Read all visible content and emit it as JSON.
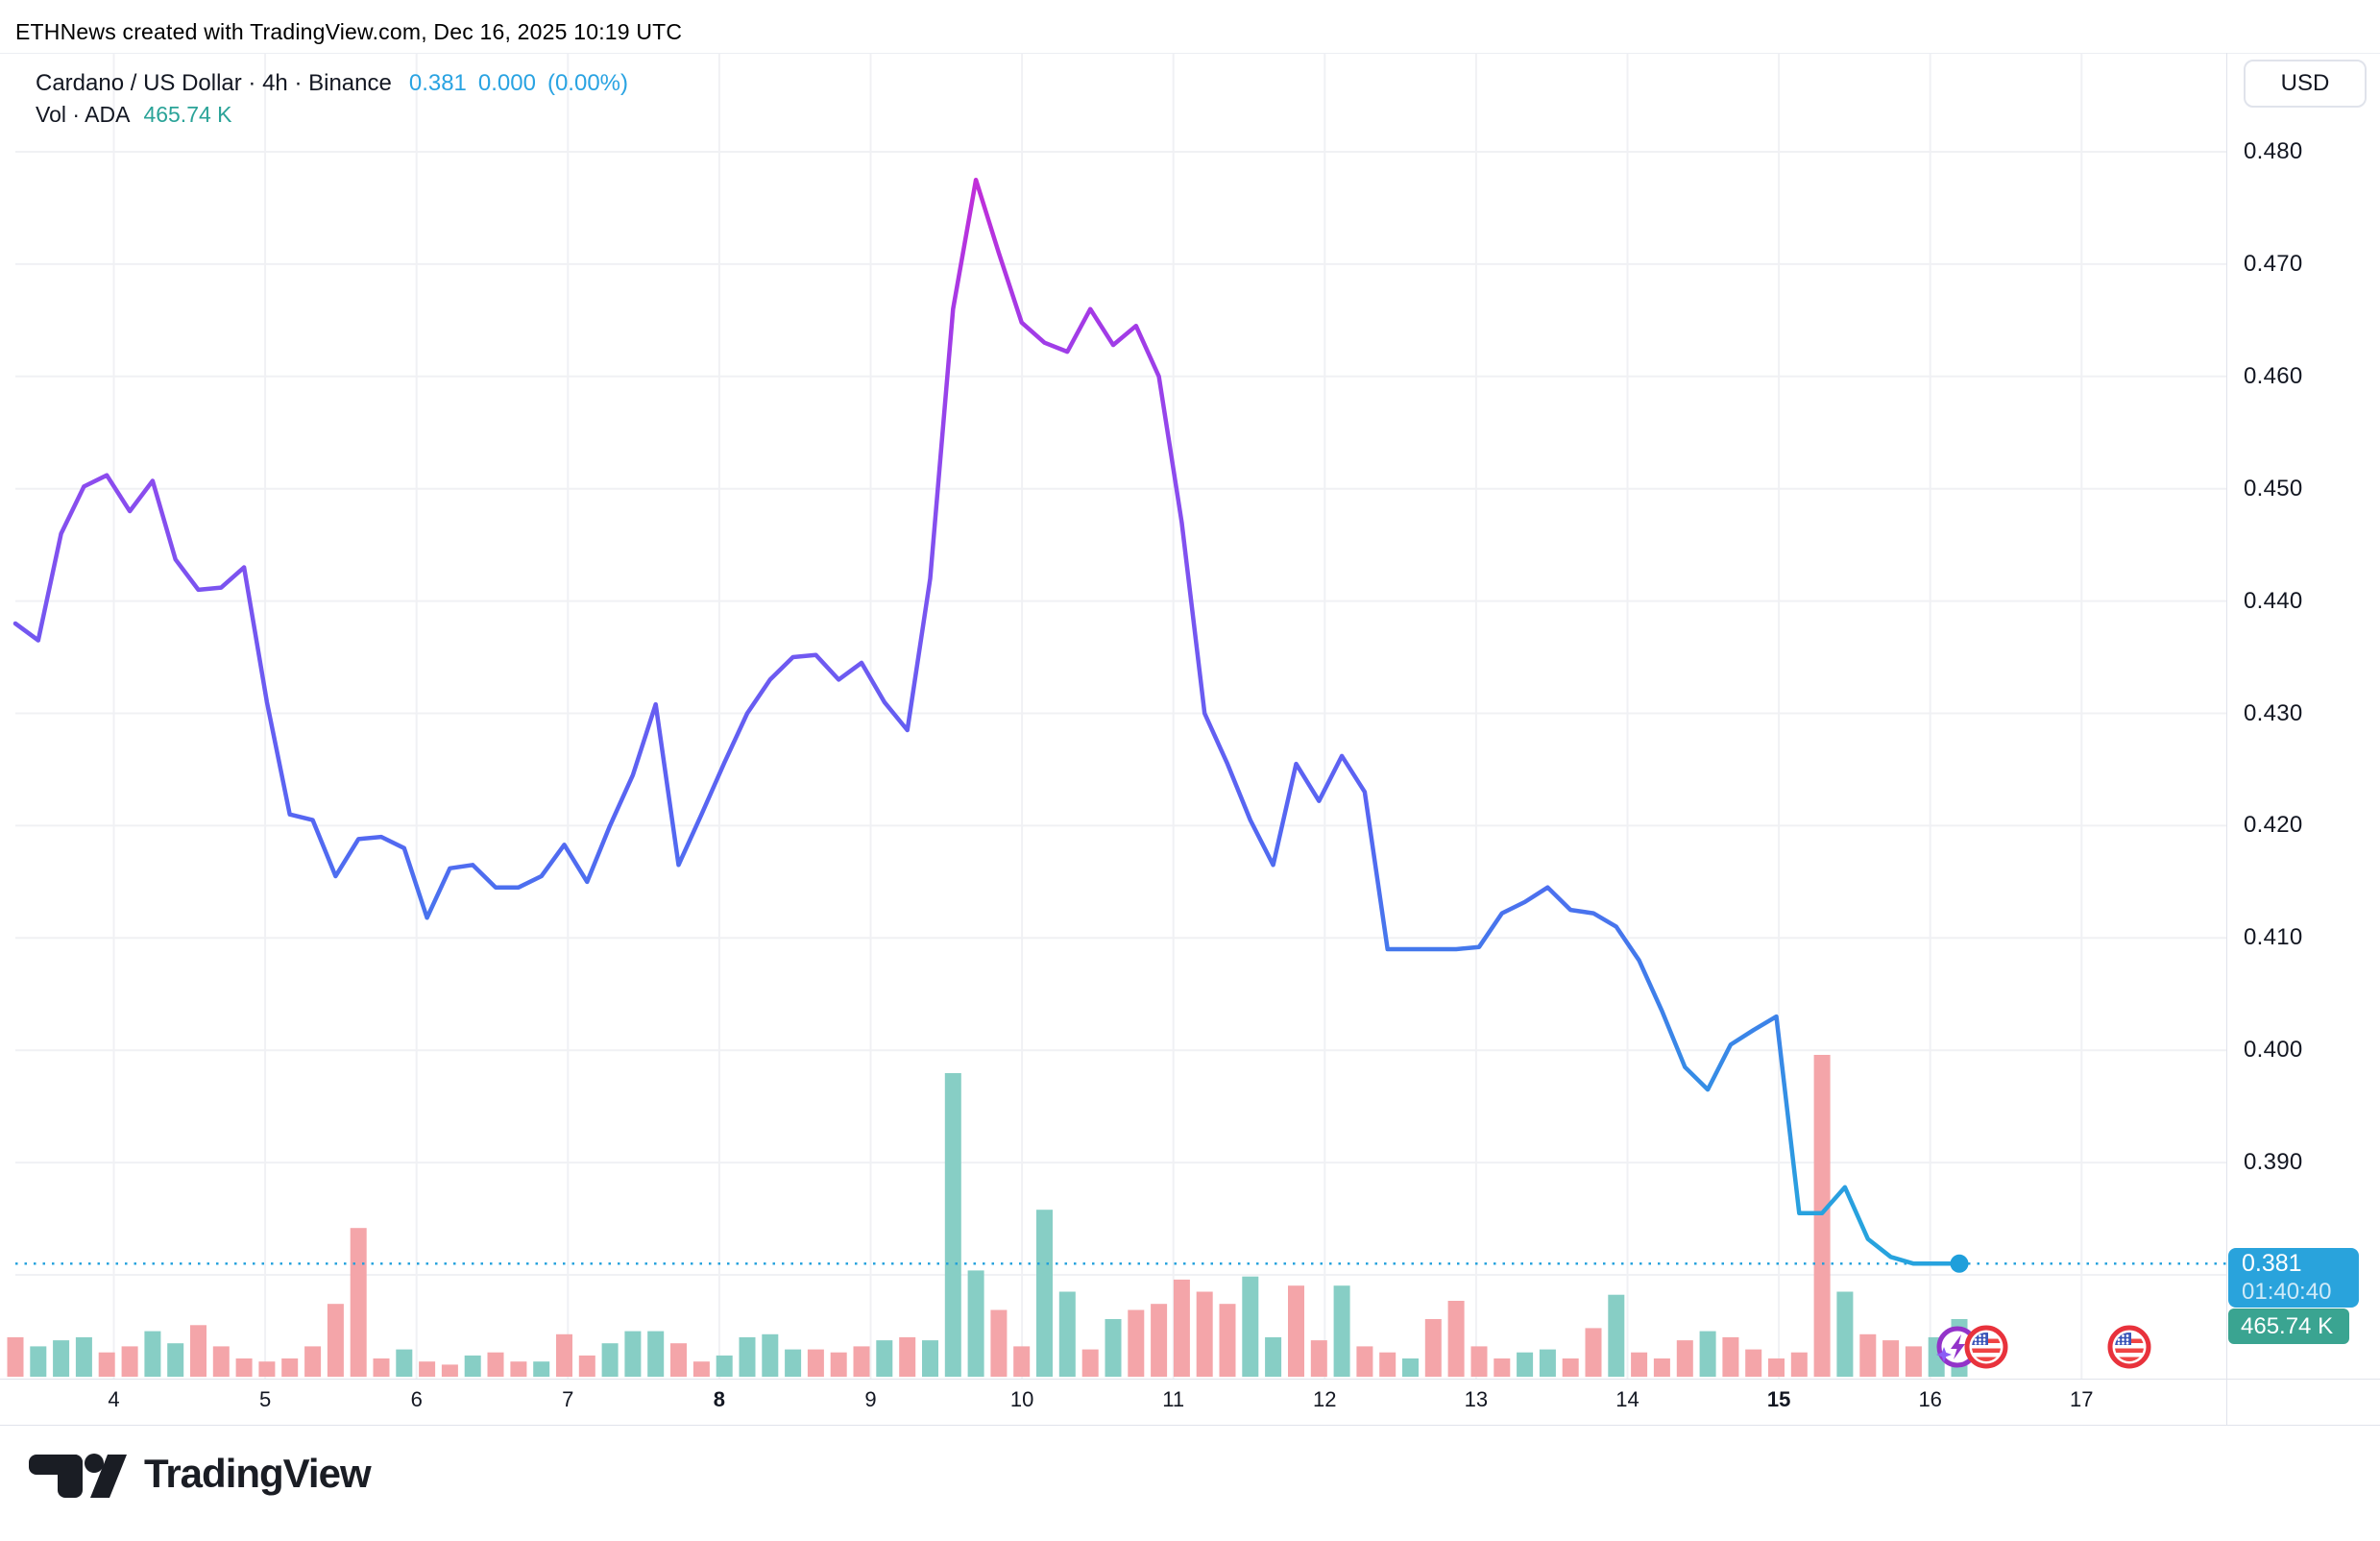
{
  "note": "ETHNews created with TradingView.com, Dec 16, 2025 10:19 UTC",
  "legend": {
    "symbol_line": "Cardano / US Dollar · 4h · Binance",
    "price": "0.381",
    "change": "0.000",
    "change_pct": "(0.00%)",
    "vol_line": "Vol · ADA",
    "vol_value": "465.74 K"
  },
  "axis": {
    "currency_button": "USD",
    "price_ticks": [
      "0.480",
      "0.470",
      "0.460",
      "0.450",
      "0.440",
      "0.430",
      "0.420",
      "0.410",
      "0.400",
      "0.390"
    ],
    "date_ticks": [
      {
        "label": "4",
        "bold": false
      },
      {
        "label": "5",
        "bold": false
      },
      {
        "label": "6",
        "bold": false
      },
      {
        "label": "7",
        "bold": false
      },
      {
        "label": "8",
        "bold": true
      },
      {
        "label": "9",
        "bold": false
      },
      {
        "label": "10",
        "bold": false
      },
      {
        "label": "11",
        "bold": false
      },
      {
        "label": "12",
        "bold": false
      },
      {
        "label": "13",
        "bold": false
      },
      {
        "label": "14",
        "bold": false
      },
      {
        "label": "15",
        "bold": true
      },
      {
        "label": "16",
        "bold": false
      },
      {
        "label": "17",
        "bold": false
      }
    ],
    "last_price": "0.381",
    "countdown": "01:40:40",
    "last_volume": "465.74 K"
  },
  "footer": {
    "brand": "TradingView"
  },
  "colors": {
    "accent_blue": "#29a3dc",
    "teal_text": "#2aa398",
    "volume_up": "#87cec5",
    "volume_down": "#f4a5a9",
    "grid": "#f0f1f4",
    "border": "#e0e3eb",
    "dotted_line": "#1f9fdb",
    "price_label_bg": "#29a3dc",
    "volume_label_bg": "#3aa491",
    "line_gradient": [
      {
        "offset": 0.02,
        "color": "#c62bd6"
      },
      {
        "offset": 0.16,
        "color": "#a43ae6"
      },
      {
        "offset": 0.31,
        "color": "#8a4cee"
      },
      {
        "offset": 0.46,
        "color": "#6f59f1"
      },
      {
        "offset": 0.6,
        "color": "#5566f2"
      },
      {
        "offset": 0.75,
        "color": "#3f7eea"
      },
      {
        "offset": 0.95,
        "color": "#27a3de"
      }
    ]
  },
  "chart_data": {
    "type": "line",
    "title": "Cardano / US Dollar",
    "interval": "4h",
    "exchange": "Binance",
    "x_unit": "4-hour bars, Dec 3 16:00 UTC through Dec 16 ~10:19 UTC (days 4–17 labeled on axis)",
    "ylabel": "USD",
    "ylim": [
      0.378,
      0.4825
    ],
    "grid_step": 0.01,
    "legend_position": "top-left",
    "grid": true,
    "current_price": 0.381,
    "current_change": 0.0,
    "current_change_pct": "0.00%",
    "current_volume": "465.74 K",
    "price_points": [
      0.438,
      0.4365,
      0.446,
      0.4502,
      0.4512,
      0.448,
      0.4507,
      0.4437,
      0.441,
      0.4412,
      0.443,
      0.431,
      0.421,
      0.4205,
      0.4155,
      0.4188,
      0.419,
      0.418,
      0.4118,
      0.4162,
      0.4165,
      0.4145,
      0.4145,
      0.4155,
      0.4183,
      0.415,
      0.42,
      0.4245,
      0.4308,
      0.4165,
      0.421,
      0.4256,
      0.43,
      0.433,
      0.435,
      0.4352,
      0.433,
      0.4345,
      0.431,
      0.4285,
      0.442,
      0.466,
      0.4775,
      0.471,
      0.4648,
      0.463,
      0.4622,
      0.466,
      0.4628,
      0.4645,
      0.46,
      0.447,
      0.43,
      0.4255,
      0.4205,
      0.4165,
      0.4255,
      0.4222,
      0.4262,
      0.423,
      0.409,
      0.409,
      0.409,
      0.409,
      0.4092,
      0.4122,
      0.4132,
      0.4145,
      0.4125,
      0.4122,
      0.411,
      0.408,
      0.4035,
      0.3985,
      0.3965,
      0.4005,
      0.4018,
      0.403,
      0.3855,
      0.3855,
      0.3878,
      0.3832,
      0.3816,
      0.381,
      0.381,
      0.381
    ],
    "volume_rel": [
      0.13,
      0.1,
      0.12,
      0.13,
      0.08,
      0.1,
      0.15,
      0.11,
      0.17,
      0.1,
      0.06,
      0.05,
      0.06,
      0.1,
      0.24,
      0.49,
      0.06,
      0.09,
      0.05,
      0.04,
      0.07,
      0.08,
      0.05,
      0.05,
      0.14,
      0.07,
      0.11,
      0.15,
      0.15,
      0.11,
      0.05,
      0.07,
      0.13,
      0.14,
      0.09,
      0.09,
      0.08,
      0.1,
      0.12,
      0.13,
      0.12,
      1.0,
      0.35,
      0.22,
      0.1,
      0.55,
      0.28,
      0.09,
      0.19,
      0.22,
      0.24,
      0.32,
      0.28,
      0.24,
      0.33,
      0.13,
      0.3,
      0.12,
      0.3,
      0.1,
      0.08,
      0.06,
      0.19,
      0.25,
      0.1,
      0.06,
      0.08,
      0.09,
      0.06,
      0.16,
      0.27,
      0.08,
      0.06,
      0.12,
      0.15,
      0.13,
      0.09,
      0.06,
      0.08,
      1.06,
      0.28,
      0.14,
      0.12,
      0.1,
      0.13,
      0.19
    ],
    "volume_direction": [
      "d",
      "u",
      "u",
      "u",
      "d",
      "d",
      "u",
      "u",
      "d",
      "d",
      "d",
      "d",
      "d",
      "d",
      "d",
      "d",
      "d",
      "u",
      "d",
      "d",
      "u",
      "d",
      "d",
      "u",
      "d",
      "d",
      "u",
      "u",
      "u",
      "d",
      "d",
      "u",
      "u",
      "u",
      "u",
      "d",
      "d",
      "d",
      "u",
      "d",
      "u",
      "u",
      "u",
      "d",
      "d",
      "u",
      "u",
      "d",
      "u",
      "d",
      "d",
      "d",
      "d",
      "d",
      "u",
      "u",
      "d",
      "d",
      "u",
      "d",
      "d",
      "u",
      "d",
      "d",
      "d",
      "d",
      "u",
      "u",
      "d",
      "d",
      "u",
      "d",
      "d",
      "d",
      "u",
      "d",
      "d",
      "d",
      "d",
      "d",
      "u",
      "d",
      "d",
      "d",
      "u",
      "u"
    ]
  }
}
